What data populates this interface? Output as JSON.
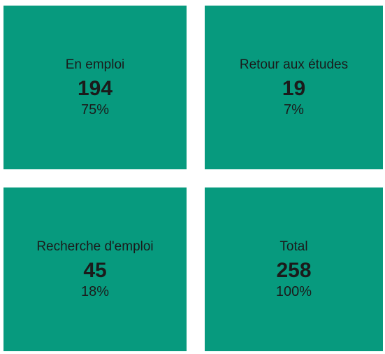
{
  "tiles": [
    {
      "label": "En emploi",
      "count": "194",
      "percent": "75%"
    },
    {
      "label": "Retour aux études",
      "count": "19",
      "percent": "7%"
    },
    {
      "label": "Recherche d'emploi",
      "count": "45",
      "percent": "18%"
    },
    {
      "label": "Total",
      "count": "258",
      "percent": "100%"
    }
  ]
}
